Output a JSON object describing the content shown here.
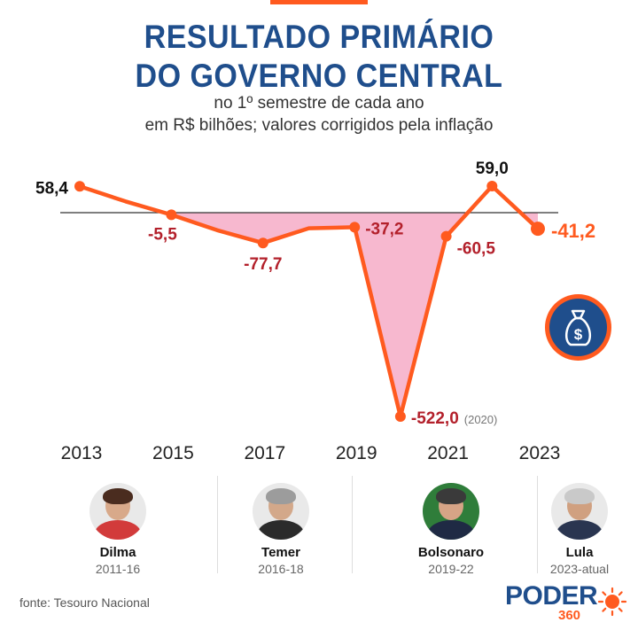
{
  "header": {
    "title_line1": "RESULTADO PRIMÁRIO",
    "title_line2": "DO GOVERNO CENTRAL",
    "subtitle_line1": "no 1º semestre de cada ano",
    "subtitle_line2": "em R$ bilhões; valores corrigidos pela inflação"
  },
  "chart_data": {
    "type": "line",
    "title": "RESULTADO PRIMÁRIO DO GOVERNO CENTRAL",
    "subtitle": "no 1º semestre de cada ano — em R$ bilhões; valores corrigidos pela inflação",
    "x": [
      2013,
      2014,
      2015,
      2016,
      2017,
      2018,
      2019,
      2020,
      2021,
      2022,
      2023
    ],
    "values": [
      58.4,
      25.0,
      -5.5,
      -45.0,
      -77.7,
      -40.0,
      -37.2,
      -522.0,
      -60.5,
      59.0,
      -41.2
    ],
    "data_labels": [
      {
        "year": 2013,
        "label": "58,4"
      },
      {
        "year": 2015,
        "label": "-5,5"
      },
      {
        "year": 2017,
        "label": "-77,7"
      },
      {
        "year": 2019,
        "label": "-37,2"
      },
      {
        "year": 2020,
        "label": "-522,0",
        "note": "(2020)"
      },
      {
        "year": 2021,
        "label": "-60,5"
      },
      {
        "year": 2022,
        "label": "59,0"
      },
      {
        "year": 2023,
        "label": "-41,2"
      }
    ],
    "x_ticks": [
      "2013",
      "2015",
      "2017",
      "2019",
      "2021",
      "2023"
    ],
    "ylim": [
      -522,
      59
    ],
    "line_color": "#ff5a1f",
    "negative_fill": "#f7b8cf",
    "negative_label_color": "#b3202b",
    "positive_label_color": "#111111",
    "grid": false
  },
  "presidents": [
    {
      "name": "Dilma",
      "term": "2011-16"
    },
    {
      "name": "Temer",
      "term": "2016-18"
    },
    {
      "name": "Bolsonaro",
      "term": "2019-22"
    },
    {
      "name": "Lula",
      "term": "2023-atual"
    }
  ],
  "icons": {
    "money_bag": "money-bag-icon"
  },
  "footer": {
    "source": "fonte: Tesouro Nacional",
    "logo_word": "PODER",
    "logo_number": "360"
  },
  "colors": {
    "title": "#1f4e8c",
    "accent": "#ff5a1f"
  }
}
